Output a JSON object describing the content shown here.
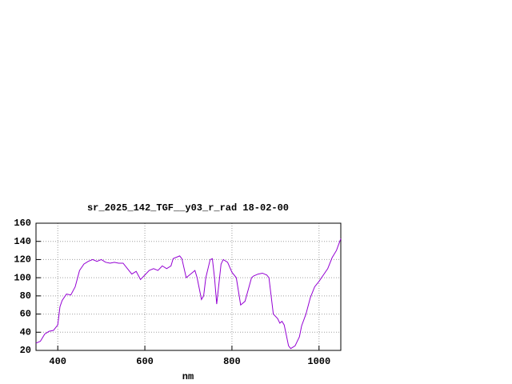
{
  "chart_data": {
    "type": "line",
    "title": "sr_2025_142_TGF__y03_r_rad 18-02-00",
    "x_label": "nm",
    "color": "#9400d3",
    "grid": true,
    "xlim": [
      350,
      1050
    ],
    "xticks": [
      400,
      600,
      800,
      1000
    ],
    "ylim": [
      20,
      160
    ],
    "yticks": [
      20,
      40,
      60,
      80,
      100,
      120,
      140,
      160
    ],
    "x": [
      350,
      360,
      370,
      380,
      390,
      400,
      405,
      410,
      420,
      430,
      440,
      450,
      460,
      470,
      480,
      490,
      500,
      510,
      520,
      530,
      540,
      550,
      560,
      570,
      580,
      590,
      600,
      610,
      620,
      630,
      640,
      650,
      660,
      665,
      680,
      685,
      695,
      710,
      715,
      720,
      730,
      735,
      740,
      750,
      755,
      760,
      765,
      775,
      780,
      790,
      800,
      810,
      820,
      830,
      845,
      850,
      860,
      870,
      880,
      885,
      895,
      905,
      910,
      915,
      920,
      930,
      935,
      945,
      955,
      960,
      970,
      980,
      990,
      1000,
      1010,
      1020,
      1030,
      1040,
      1050
    ],
    "values": [
      28,
      30,
      38,
      41,
      42,
      48,
      68,
      75,
      82,
      81,
      90,
      108,
      115,
      118,
      120,
      118,
      120,
      117,
      116,
      117,
      116,
      116,
      110,
      104,
      107,
      98,
      103,
      108,
      110,
      108,
      113,
      110,
      113,
      121,
      124,
      121,
      100,
      106,
      108,
      100,
      76,
      80,
      100,
      120,
      121,
      100,
      71,
      115,
      120,
      117,
      106,
      100,
      70,
      74,
      100,
      102,
      104,
      105,
      103,
      100,
      60,
      55,
      50,
      52,
      48,
      25,
      22,
      25,
      35,
      47,
      60,
      78,
      90,
      96,
      103,
      110,
      122,
      130,
      143
    ]
  }
}
